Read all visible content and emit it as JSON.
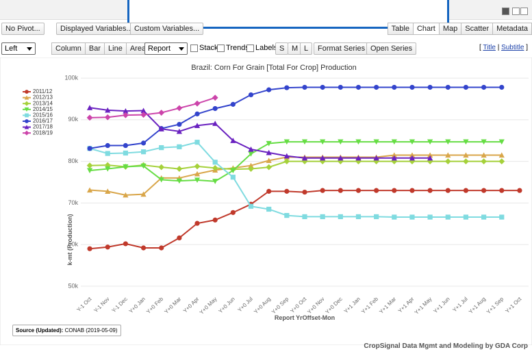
{
  "toolbar": {
    "row1_left": [
      "No Pivot...",
      "Displayed Variables...",
      "Custom Variables..."
    ],
    "row1_right": [
      "Table",
      "Chart",
      "Map",
      "Scatter",
      "Metadata"
    ],
    "position_select": "Left",
    "chart_types": [
      "Column",
      "Bar",
      "Line",
      "Area"
    ],
    "series_select": "Report Yr",
    "checkboxes": [
      "Stack",
      "Trends",
      "Labels"
    ],
    "sizes": [
      "S",
      "M",
      "L"
    ],
    "series_buttons": [
      "Format Series",
      "Open Series"
    ],
    "bracket_open": "[",
    "title_link": "Title",
    "separator": "|",
    "subtitle_link": "Subtitle",
    "bracket_close": "]"
  },
  "chart_data": {
    "type": "line",
    "title": "Brazil: Corn For Grain [Total For Crop] Production",
    "y_label": "k-mt (Production)",
    "x_label": "Report YrOffset-Mon",
    "categories": [
      "Y-1 Oct",
      "Y-1 Nov",
      "Y-1 Dec",
      "Y+0 Jan",
      "Y+0 Feb",
      "Y+0 Mar",
      "Y+0 Apr",
      "Y+0 May",
      "Y+0 Jun",
      "Y+0 Jul",
      "Y+0 Aug",
      "Y+0 Sep",
      "Y+0 Oct",
      "Y+0 Nov",
      "Y+0 Dec",
      "Y+1 Jan",
      "Y+1 Feb",
      "Y+1 Mar",
      "Y+1 Apr",
      "Y+1 May",
      "Y+1 Jun",
      "Y+1 Jul",
      "Y+1 Aug",
      "Y+1 Sep",
      "Y+1 Oct"
    ],
    "ylim": [
      48500,
      101500
    ],
    "yticks": [
      {
        "value": 50000,
        "label": "50k"
      },
      {
        "value": 60000,
        "label": "60k"
      },
      {
        "value": 70000,
        "label": "70k"
      },
      {
        "value": 80000,
        "label": "80k"
      },
      {
        "value": 90000,
        "label": "90k"
      },
      {
        "value": 100000,
        "label": "100k"
      }
    ],
    "grid": true,
    "series": [
      {
        "name": "2011/12",
        "color": "#c0392b",
        "marker": "circle",
        "values": [
          59000,
          59400,
          60200,
          59200,
          59200,
          61600,
          65100,
          65900,
          67700,
          69700,
          72800,
          72800,
          72600,
          73000,
          73000,
          73000,
          73000,
          73000,
          73000,
          73000,
          73000,
          73000,
          73000,
          73000,
          73000
        ]
      },
      {
        "name": "2012/13",
        "color": "#d9a64a",
        "marker": "triangle-up",
        "values": [
          73100,
          72800,
          71900,
          72100,
          76000,
          76000,
          77000,
          77900,
          78400,
          79000,
          80200,
          81000,
          81000,
          81000,
          81000,
          81000,
          81000,
          81500,
          81500,
          81500,
          81500,
          81500,
          81500,
          81500,
          null
        ]
      },
      {
        "name": "2013/14",
        "color": "#a5d13a",
        "marker": "diamond",
        "values": [
          79000,
          79100,
          78700,
          79100,
          78600,
          78200,
          78800,
          78400,
          78100,
          78200,
          78600,
          80000,
          80000,
          80000,
          80000,
          80000,
          80000,
          80000,
          80000,
          80000,
          80000,
          80000,
          80000,
          80000,
          null
        ]
      },
      {
        "name": "2014/15",
        "color": "#66dd44",
        "marker": "triangle-down",
        "values": [
          77800,
          78200,
          78700,
          78900,
          75600,
          75300,
          75500,
          75200,
          77800,
          81800,
          84300,
          84700,
          84700,
          84700,
          84700,
          84700,
          84700,
          84700,
          84700,
          84700,
          84700,
          84700,
          84700,
          84700,
          null
        ]
      },
      {
        "name": "2015/16",
        "color": "#7fdbe0",
        "marker": "square",
        "values": [
          83100,
          81900,
          82000,
          82300,
          83300,
          83500,
          84600,
          79800,
          76200,
          69200,
          68500,
          67000,
          66700,
          66700,
          66700,
          66700,
          66700,
          66600,
          66600,
          66600,
          66600,
          66600,
          66600,
          66600,
          null
        ]
      },
      {
        "name": "2016/17",
        "color": "#3344cc",
        "marker": "circle",
        "values": [
          83100,
          83800,
          83800,
          84400,
          87900,
          88900,
          91400,
          92700,
          93700,
          96000,
          97200,
          97700,
          97800,
          97800,
          97800,
          97800,
          97800,
          97800,
          97800,
          97800,
          97800,
          97800,
          97800,
          97800,
          null
        ]
      },
      {
        "name": "2017/18",
        "color": "#6a22c0",
        "marker": "triangle-up",
        "values": [
          92900,
          92300,
          92100,
          92200,
          87800,
          87200,
          88600,
          89100,
          85000,
          82900,
          82100,
          81300,
          80800,
          80800,
          80800,
          80800,
          80800,
          80800,
          80800,
          80800,
          null,
          null,
          null,
          null,
          null
        ]
      },
      {
        "name": "2018/19",
        "color": "#cc44aa",
        "marker": "diamond",
        "values": [
          90500,
          90600,
          91100,
          91200,
          91700,
          92800,
          93900,
          95300,
          null,
          null,
          null,
          null,
          null,
          null,
          null,
          null,
          null,
          null,
          null,
          null,
          null,
          null,
          null,
          null,
          null
        ]
      }
    ]
  },
  "source": {
    "label": "Source (Updated):",
    "text": "CONAB (2019-05-09)"
  },
  "footer": "CropSignal Data Mgmt and Modeling by GDA Corp"
}
